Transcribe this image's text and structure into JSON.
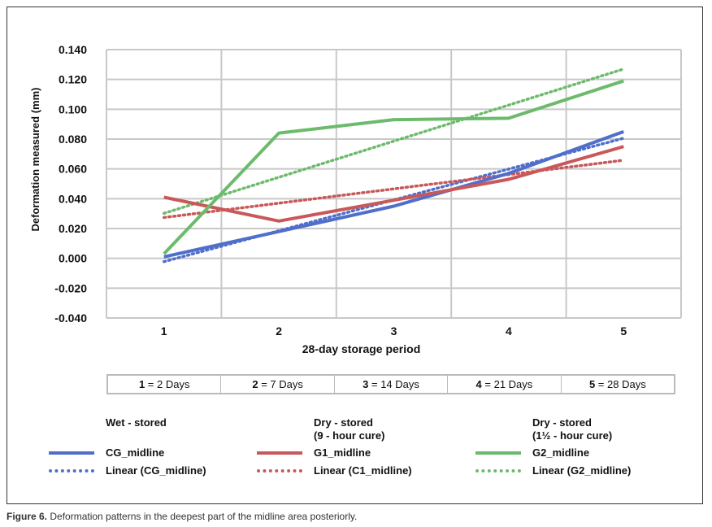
{
  "chart_data": {
    "type": "line",
    "ylabel": "Deformation measured (mm)",
    "xlabel": "28-day storage period",
    "categories": [
      "1",
      "2",
      "3",
      "4",
      "5"
    ],
    "ylim": [
      -0.04,
      0.14
    ],
    "yticks": [
      "0.140",
      "0.120",
      "0.100",
      "0.080",
      "0.060",
      "0.040",
      "0.020",
      "0.000",
      "-0.020",
      "-0.040"
    ],
    "grid": true,
    "series": [
      {
        "name": "CG_midline",
        "color": "#4f6fcb",
        "values": [
          0.001,
          0.018,
          0.035,
          0.057,
          0.085
        ],
        "trend_label": "Linear (CG_midline)"
      },
      {
        "name": "G1_midline",
        "color": "#c9585a",
        "values": [
          0.041,
          0.025,
          0.039,
          0.053,
          0.075
        ],
        "trend_label": "Linear (C1_midline)"
      },
      {
        "name": "G2_midline",
        "color": "#6cbb6c",
        "values": [
          0.003,
          0.084,
          0.093,
          0.094,
          0.119
        ],
        "trend_label": "Linear (G2_midline)"
      }
    ],
    "legend_groups": [
      "Wet - stored",
      "Dry - stored\n(9 - hour cure)",
      "Dry - stored\n(1½ - hour cure)"
    ]
  },
  "day_key": [
    [
      "1",
      " = 2 Days"
    ],
    [
      "2",
      " = 7 Days"
    ],
    [
      "3",
      " = 14 Days"
    ],
    [
      "4",
      " = 21 Days"
    ],
    [
      "5",
      " = 28 Days"
    ]
  ],
  "caption": {
    "label": "Figure 6.",
    "text": " Deformation patterns in the deepest part of the midline area posteriorly."
  }
}
